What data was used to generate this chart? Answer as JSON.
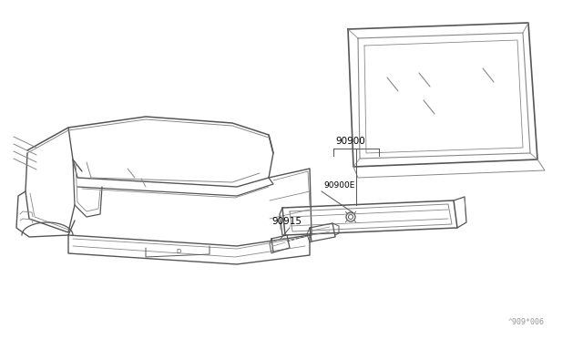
{
  "bg_color": "#ffffff",
  "line_color": "#555555",
  "label_color": "#000000",
  "watermark": "^909*006",
  "fig_width": 6.4,
  "fig_height": 3.72,
  "dpi": 100
}
